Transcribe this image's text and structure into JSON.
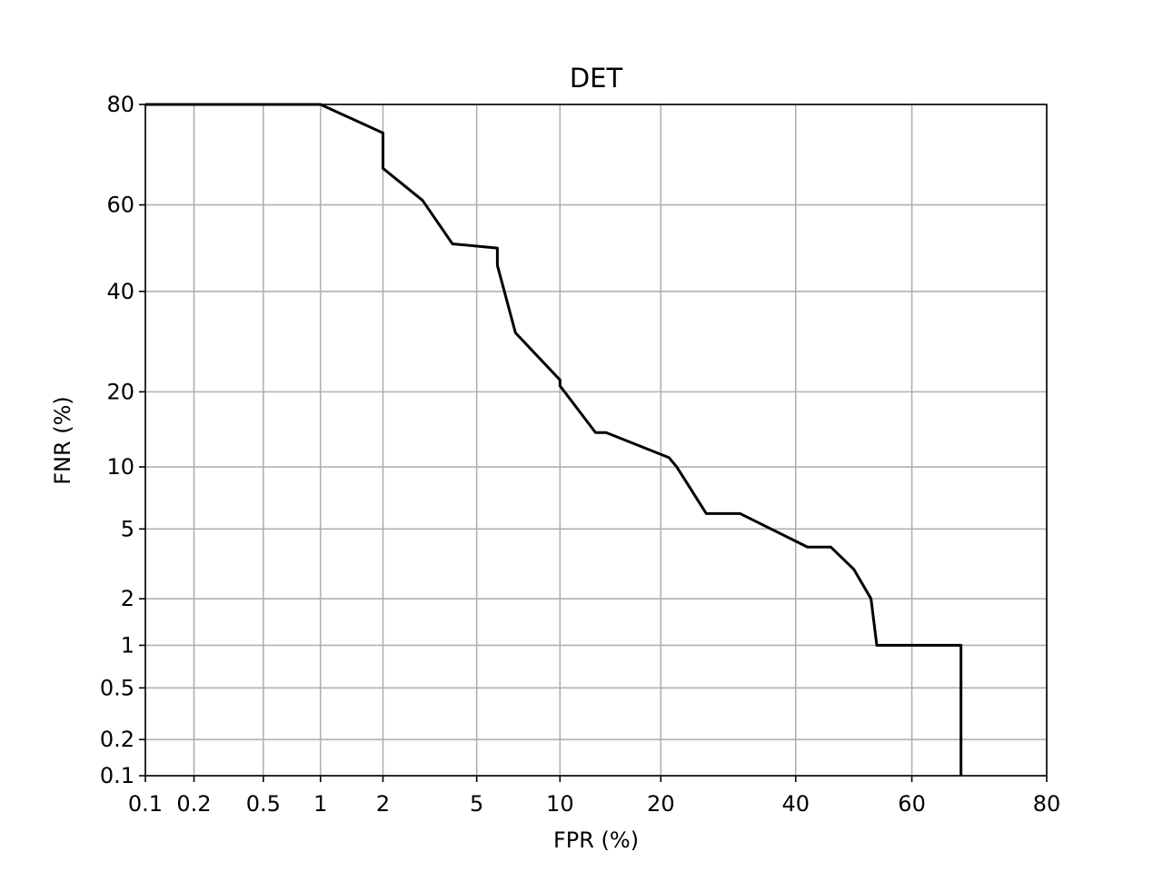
{
  "chart_data": {
    "type": "line",
    "title": "DET",
    "x_label": "FPR (%)",
    "y_label": "FNR (%)",
    "x_scale": "probit",
    "y_scale": "probit",
    "grid": true,
    "xlim": [
      0.1,
      80
    ],
    "ylim": [
      0.1,
      80
    ],
    "xticks": [
      0.1,
      0.2,
      0.5,
      1,
      2,
      5,
      10,
      20,
      40,
      60,
      80
    ],
    "yticks": [
      0.1,
      0.2,
      0.5,
      1,
      2,
      5,
      10,
      20,
      40,
      60,
      80
    ],
    "series": [
      {
        "color": "#000000",
        "x": [
          0.1,
          1,
          2,
          2,
          3,
          4,
          6,
          6,
          7,
          10,
          10,
          13,
          14,
          21,
          22,
          26,
          31,
          42,
          46,
          50,
          53,
          54,
          68,
          68
        ],
        "values": [
          80,
          80,
          75,
          68,
          61,
          51,
          50,
          46,
          31,
          22,
          21,
          14,
          14,
          11,
          10,
          6,
          6,
          4,
          4,
          3,
          2,
          1,
          1,
          0.1
        ]
      }
    ]
  }
}
